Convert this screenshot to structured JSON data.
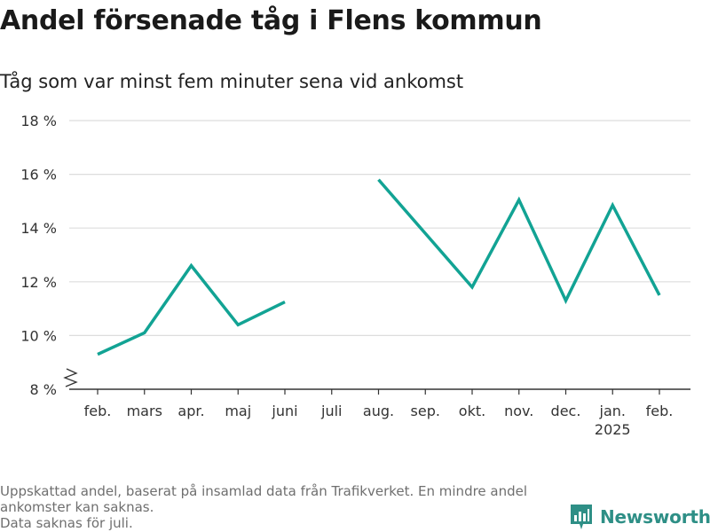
{
  "title": "Andel försenade tåg i Flens kommun",
  "subtitle": "Tåg som var minst fem minuter sena vid ankomst",
  "footnote": {
    "line1": "Uppskattad andel, baserat på insamlad data från Trafikverket. En mindre andel ankomster kan saknas.",
    "line2": "Data saknas för juli."
  },
  "brand": {
    "name": "Newsworthy",
    "color": "#2e8f86"
  },
  "colors": {
    "line": "#12a394",
    "grid": "#dddddd",
    "axis": "#333333"
  },
  "chart_data": {
    "type": "line",
    "categories": [
      "feb.",
      "mars",
      "apr.",
      "maj",
      "juni",
      "juli",
      "aug.",
      "sep.",
      "okt.",
      "nov.",
      "dec.",
      "jan.",
      "feb."
    ],
    "category_sublabels": [
      "",
      "",
      "",
      "",
      "",
      "",
      "",
      "",
      "",
      "",
      "",
      "2025",
      ""
    ],
    "series": [
      {
        "values": [
          9.3,
          10.1,
          12.6,
          10.4,
          11.25,
          null,
          15.8,
          13.8,
          11.8,
          15.05,
          11.3,
          14.85,
          11.5
        ]
      }
    ],
    "ylim": [
      8,
      18
    ],
    "yticks": [
      8,
      10,
      12,
      14,
      16,
      18
    ],
    "ytick_labels": [
      "8 %",
      "10 %",
      "12 %",
      "14 %",
      "16 %",
      "18 %"
    ],
    "y_axis_break": true,
    "grid": true,
    "xlabel": "",
    "ylabel": ""
  }
}
